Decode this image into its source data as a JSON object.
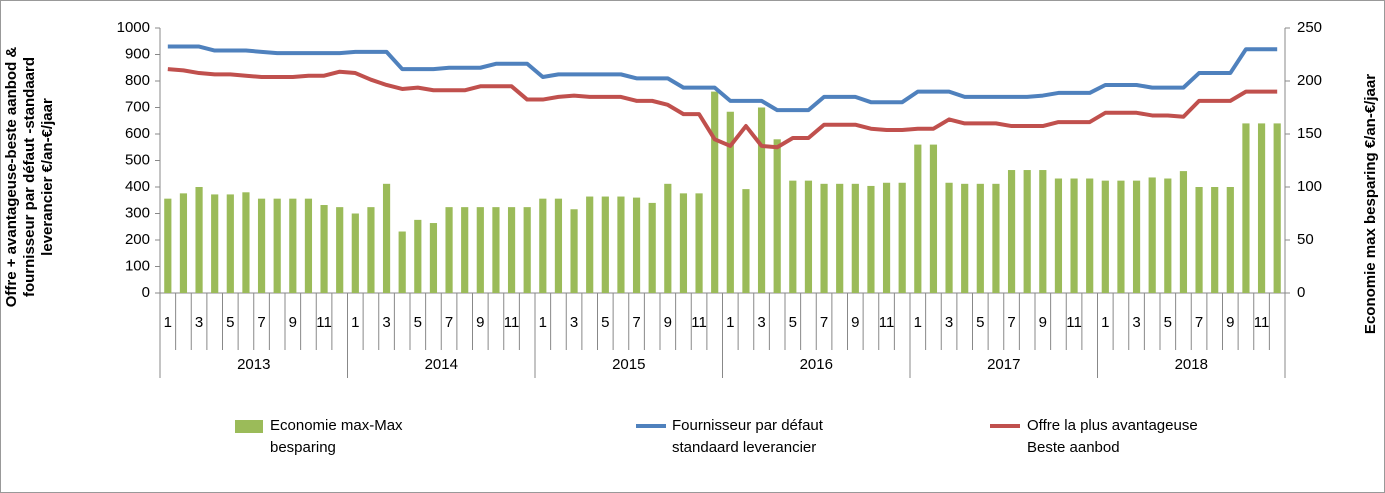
{
  "chart_data": {
    "type": "bar_line",
    "ylabel": "Offre + avantageuse-beste aanbod & fournisseur par défaut -standaard leverancier €/an-€/jaar",
    "y2label": "Economie max besparing €/an-€/jaar",
    "categories": [
      "1",
      null,
      "3",
      null,
      "5",
      null,
      "7",
      null,
      "9",
      null,
      "11",
      null,
      "1",
      null,
      "3",
      null,
      "5",
      null,
      "7",
      null,
      "9",
      null,
      "11",
      null,
      "1",
      null,
      "3",
      null,
      "5",
      null,
      "7",
      null,
      "9",
      null,
      "11",
      null,
      "1",
      null,
      "3",
      null,
      "5",
      null,
      "7",
      null,
      "9",
      null,
      "11",
      null,
      "1",
      null,
      "3",
      null,
      "5",
      null,
      "7",
      null,
      "9",
      null,
      "11",
      null,
      "1",
      null,
      "3",
      null,
      "5",
      null,
      "7",
      null,
      "9",
      null,
      "11",
      null
    ],
    "x_groups": [
      "2013",
      "2014",
      "2015",
      "2016",
      "2017",
      "2018"
    ],
    "ylim": [
      0,
      1000
    ],
    "yticks": [
      0,
      100,
      200,
      300,
      400,
      500,
      600,
      700,
      800,
      900,
      1000
    ],
    "y2lim": [
      0,
      250
    ],
    "y2ticks": [
      0,
      50,
      100,
      150,
      200,
      250
    ],
    "grid": false,
    "series": [
      {
        "name": "Economie max-Max besparing",
        "type": "bar",
        "axis": "y2",
        "color": "#9bbb59",
        "values": [
          89,
          94,
          100,
          93,
          93,
          95,
          89,
          89,
          89,
          89,
          83,
          81,
          75,
          81,
          103,
          58,
          69,
          66,
          81,
          81,
          81,
          81,
          81,
          81,
          89,
          89,
          79,
          91,
          91,
          91,
          90,
          85,
          103,
          94,
          94,
          190,
          171,
          98,
          175,
          145,
          106,
          106,
          103,
          103,
          103,
          101,
          104,
          104,
          140,
          140,
          104,
          103,
          103,
          103,
          116,
          116,
          116,
          108,
          108,
          108,
          106,
          106,
          106,
          109,
          108,
          115,
          100,
          100,
          100,
          160,
          160,
          160
        ]
      },
      {
        "name": "Fournisseur par défaut standaard leverancier",
        "type": "line",
        "color": "#4f81bd",
        "values": [
          930,
          930,
          930,
          915,
          915,
          915,
          910,
          905,
          905,
          905,
          905,
          905,
          910,
          910,
          910,
          845,
          845,
          845,
          850,
          850,
          850,
          865,
          865,
          865,
          815,
          825,
          825,
          825,
          825,
          825,
          810,
          810,
          810,
          775,
          775,
          775,
          725,
          725,
          725,
          690,
          690,
          690,
          740,
          740,
          740,
          720,
          720,
          720,
          760,
          760,
          760,
          740,
          740,
          740,
          740,
          740,
          745,
          755,
          755,
          755,
          785,
          785,
          785,
          775,
          775,
          775,
          830,
          830,
          830,
          920,
          920,
          920
        ]
      },
      {
        "name": "Offre la plus avantageuse Beste aanbod",
        "type": "line",
        "color": "#c0504d",
        "values": [
          845,
          840,
          830,
          825,
          825,
          820,
          815,
          815,
          815,
          820,
          820,
          835,
          830,
          805,
          785,
          770,
          775,
          765,
          765,
          765,
          780,
          780,
          780,
          730,
          730,
          740,
          745,
          740,
          740,
          740,
          725,
          725,
          710,
          675,
          675,
          580,
          555,
          630,
          555,
          550,
          585,
          585,
          635,
          635,
          635,
          620,
          615,
          615,
          620,
          620,
          655,
          640,
          640,
          640,
          630,
          630,
          630,
          645,
          645,
          645,
          680,
          680,
          680,
          670,
          670,
          665,
          725,
          725,
          725,
          760,
          760,
          760
        ]
      }
    ]
  }
}
